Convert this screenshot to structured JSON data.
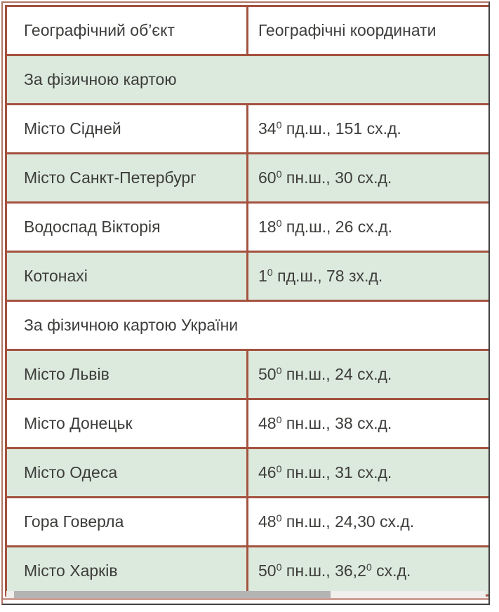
{
  "colors": {
    "border": "#a4523f",
    "frame_light": "#b07565",
    "frame_dark": "#424242",
    "green_row_bg": "#dceadd",
    "text": "#3d3d3b",
    "scrollbar_thumb": "#b4b4b4",
    "scrollbar_track": "#f0efec"
  },
  "table": {
    "columns": [
      "Географічний об’єкт",
      "Географічні координати"
    ],
    "rows": [
      {
        "kind": "section",
        "bg": "green",
        "label": "За фізичною картою"
      },
      {
        "kind": "data",
        "bg": "white",
        "object": "Місто Сідней",
        "coord": [
          {
            "t": "34"
          },
          {
            "t": "0",
            "sup": true
          },
          {
            "t": " пд.ш., 151 сх.д."
          }
        ]
      },
      {
        "kind": "data",
        "bg": "green",
        "object": "Місто Санкт-Петербург",
        "coord": [
          {
            "t": "60"
          },
          {
            "t": "0",
            "sup": true
          },
          {
            "t": " пн.ш., 30 сх.д."
          }
        ]
      },
      {
        "kind": "data",
        "bg": "white",
        "object": "Водоспад Вікторія",
        "coord": [
          {
            "t": "18"
          },
          {
            "t": "0",
            "sup": true
          },
          {
            "t": " пд.ш., 26 сх.д."
          }
        ]
      },
      {
        "kind": "data",
        "bg": "green",
        "object": "Котонахі",
        "coord": [
          {
            "t": "1"
          },
          {
            "t": "0",
            "sup": true
          },
          {
            "t": " пд.ш., 78 зх.д."
          }
        ]
      },
      {
        "kind": "section",
        "bg": "white",
        "label": "За фізичною картою України"
      },
      {
        "kind": "data",
        "bg": "green",
        "object": "Місто Львів",
        "coord": [
          {
            "t": "50"
          },
          {
            "t": "0",
            "sup": true
          },
          {
            "t": " пн.ш., 24 сх.д."
          }
        ]
      },
      {
        "kind": "data",
        "bg": "white",
        "object": "Місто Донецьк",
        "coord": [
          {
            "t": "48"
          },
          {
            "t": "0",
            "sup": true
          },
          {
            "t": " пн.ш., 38 сх.д."
          }
        ]
      },
      {
        "kind": "data",
        "bg": "green",
        "object": "Місто Одеса",
        "coord": [
          {
            "t": "46"
          },
          {
            "t": "0",
            "sup": true
          },
          {
            "t": " пн.ш., 31 сх.д."
          }
        ]
      },
      {
        "kind": "data",
        "bg": "white",
        "object": "Гора Говерла",
        "coord": [
          {
            "t": "48"
          },
          {
            "t": "0",
            "sup": true
          },
          {
            "t": " пн.ш., 24,30 сх.д."
          }
        ]
      },
      {
        "kind": "data",
        "bg": "green",
        "object": "Місто Харків",
        "coord": [
          {
            "t": "50"
          },
          {
            "t": "0",
            "sup": true
          },
          {
            "t": " пн.ш., 36,2"
          },
          {
            "t": "0",
            "sup": true
          },
          {
            "t": " сх.д."
          }
        ]
      }
    ]
  },
  "scrollbar": {
    "orientation": "horizontal",
    "thumb_left_pct": 1.6,
    "thumb_width_pct": 66
  }
}
